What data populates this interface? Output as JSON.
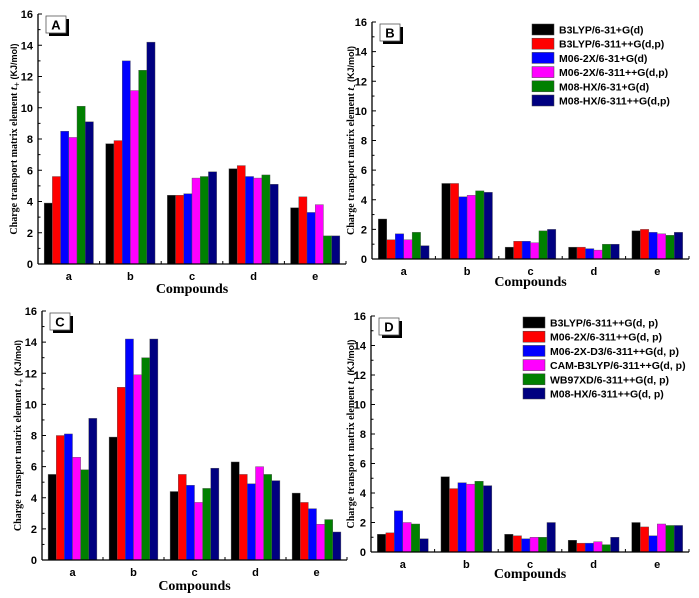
{
  "chart_data": [
    {
      "type": "bar",
      "panel_label": "A",
      "title": "",
      "xlabel": "Compounds",
      "ylabel": "Charge transport matrix element t+ (KJ/mol)",
      "ylabel_main": "Charge transport matrix element ",
      "ylabel_var": "t",
      "ylabel_sub": "+",
      "ylabel_unit": " (KJ/mol)",
      "ylim": [
        0,
        16
      ],
      "yticks": [
        "0",
        "2",
        "4",
        "6",
        "8",
        "10",
        "12",
        "14",
        "16"
      ],
      "categories": [
        "a",
        "b",
        "c",
        "d",
        "e"
      ],
      "legend": null,
      "series": [
        {
          "name": "B3LYP/6-31+G(d)",
          "color": "#000000",
          "values": [
            3.9,
            7.7,
            4.4,
            6.1,
            3.6
          ]
        },
        {
          "name": "B3LYP/6-311++G(d,p)",
          "color": "#ff0000",
          "values": [
            5.6,
            7.9,
            4.4,
            6.3,
            4.3
          ]
        },
        {
          "name": "M06-2X/6-31+G(d)",
          "color": "#0000ff",
          "values": [
            8.5,
            13.0,
            4.5,
            5.6,
            3.3
          ]
        },
        {
          "name": "M06-2X/6-311++G(d,p)",
          "color": "#ff00ff",
          "values": [
            8.1,
            11.1,
            5.5,
            5.5,
            3.8
          ]
        },
        {
          "name": "M08-HX/6-31+G(d)",
          "color": "#008000",
          "values": [
            10.1,
            12.4,
            5.6,
            5.7,
            1.8
          ]
        },
        {
          "name": "M08-HX/6-311++G(d,p)",
          "color": "#000080",
          "values": [
            9.1,
            14.2,
            5.9,
            5.1,
            1.8
          ]
        }
      ]
    },
    {
      "type": "bar",
      "panel_label": "B",
      "title": "",
      "xlabel": "Compounds",
      "ylabel": "Charge transport matrix element t- (KJ/mol)",
      "ylabel_main": "Charge transport matrix element ",
      "ylabel_var": "t",
      "ylabel_sub": "-",
      "ylabel_unit": " (KJ/mol)",
      "ylim": [
        0,
        16
      ],
      "yticks": [
        "0",
        "2",
        "4",
        "6",
        "8",
        "10",
        "12",
        "14",
        "16"
      ],
      "categories": [
        "a",
        "b",
        "c",
        "d",
        "e"
      ],
      "legend": "top-right",
      "series": [
        {
          "name": "B3LYP/6-31+G(d)",
          "color": "#000000",
          "values": [
            2.7,
            5.1,
            0.8,
            0.8,
            1.9
          ]
        },
        {
          "name": "B3LYP/6-311++G(d,p)",
          "color": "#ff0000",
          "values": [
            1.3,
            5.1,
            1.2,
            0.8,
            2.0
          ]
        },
        {
          "name": "M06-2X/6-31+G(d)",
          "color": "#0000ff",
          "values": [
            1.7,
            4.2,
            1.2,
            0.7,
            1.8
          ]
        },
        {
          "name": "M06-2X/6-311++G(d,p)",
          "color": "#ff00ff",
          "values": [
            1.3,
            4.3,
            1.1,
            0.6,
            1.7
          ]
        },
        {
          "name": "M08-HX/6-31+G(d)",
          "color": "#008000",
          "values": [
            1.8,
            4.6,
            1.9,
            1.0,
            1.6
          ]
        },
        {
          "name": "M08-HX/6-311++G(d,p)",
          "color": "#000080",
          "values": [
            0.9,
            4.5,
            2.0,
            1.0,
            1.8
          ]
        }
      ]
    },
    {
      "type": "bar",
      "panel_label": "C",
      "title": "",
      "xlabel": "Compounds",
      "ylabel": "Charge transport matrix element t+ (KJ/mol)",
      "ylabel_main": "Charge transport matrix element ",
      "ylabel_var": "t",
      "ylabel_sub": "+",
      "ylabel_unit": " (KJ/mol)",
      "ylim": [
        0,
        16
      ],
      "yticks": [
        "0",
        "2",
        "4",
        "6",
        "8",
        "10",
        "12",
        "14",
        "16"
      ],
      "categories": [
        "a",
        "b",
        "c",
        "d",
        "e"
      ],
      "legend": null,
      "series": [
        {
          "name": "B3LYP/6-311++G(d, p)",
          "color": "#000000",
          "values": [
            5.5,
            7.9,
            4.4,
            6.3,
            4.3
          ]
        },
        {
          "name": "M06-2X/6-311++G(d, p)",
          "color": "#ff0000",
          "values": [
            8.0,
            11.1,
            5.5,
            5.5,
            3.7
          ]
        },
        {
          "name": "M06-2X-D3/6-311++G(d, p)",
          "color": "#0000ff",
          "values": [
            8.1,
            14.2,
            4.8,
            4.9,
            3.3
          ]
        },
        {
          "name": "CAM-B3LYP/6-311++G(d, p)",
          "color": "#ff00ff",
          "values": [
            6.6,
            11.9,
            3.7,
            6.0,
            2.3
          ]
        },
        {
          "name": "WB97XD/6-311++G(d, p)",
          "color": "#008000",
          "values": [
            5.8,
            13.0,
            4.6,
            5.5,
            2.6
          ]
        },
        {
          "name": "M08-HX/6-311++G(d, p)",
          "color": "#000080",
          "values": [
            9.1,
            14.2,
            5.9,
            5.1,
            1.8
          ]
        }
      ]
    },
    {
      "type": "bar",
      "panel_label": "D",
      "title": "",
      "xlabel": "Compounds",
      "ylabel": "Charge transport matrix element t- (KJ/mol)",
      "ylabel_main": "Charge transport matrix element ",
      "ylabel_var": "t",
      "ylabel_sub": "-",
      "ylabel_unit": " (KJ/mol)",
      "ylim": [
        0,
        16
      ],
      "yticks": [
        "0",
        "2",
        "4",
        "6",
        "8",
        "10",
        "12",
        "14",
        "16"
      ],
      "categories": [
        "a",
        "b",
        "c",
        "d",
        "e"
      ],
      "legend": "top-right",
      "series": [
        {
          "name": "B3LYP/6-311++G(d, p)",
          "color": "#000000",
          "values": [
            1.2,
            5.1,
            1.2,
            0.8,
            2.0
          ]
        },
        {
          "name": "M06-2X/6-311++G(d, p)",
          "color": "#ff0000",
          "values": [
            1.3,
            4.3,
            1.1,
            0.6,
            1.7
          ]
        },
        {
          "name": "M06-2X-D3/6-311++G(d, p)",
          "color": "#0000ff",
          "values": [
            2.8,
            4.7,
            0.9,
            0.6,
            1.1
          ]
        },
        {
          "name": "CAM-B3LYP/6-311++G(d, p)",
          "color": "#ff00ff",
          "values": [
            2.0,
            4.6,
            1.0,
            0.7,
            1.9
          ]
        },
        {
          "name": "WB97XD/6-311++G(d, p)",
          "color": "#008000",
          "values": [
            1.9,
            4.8,
            1.0,
            0.5,
            1.8
          ]
        },
        {
          "name": "M08-HX/6-311++G(d, p)",
          "color": "#000080",
          "values": [
            0.9,
            4.5,
            2.0,
            1.0,
            1.8
          ]
        }
      ]
    }
  ]
}
